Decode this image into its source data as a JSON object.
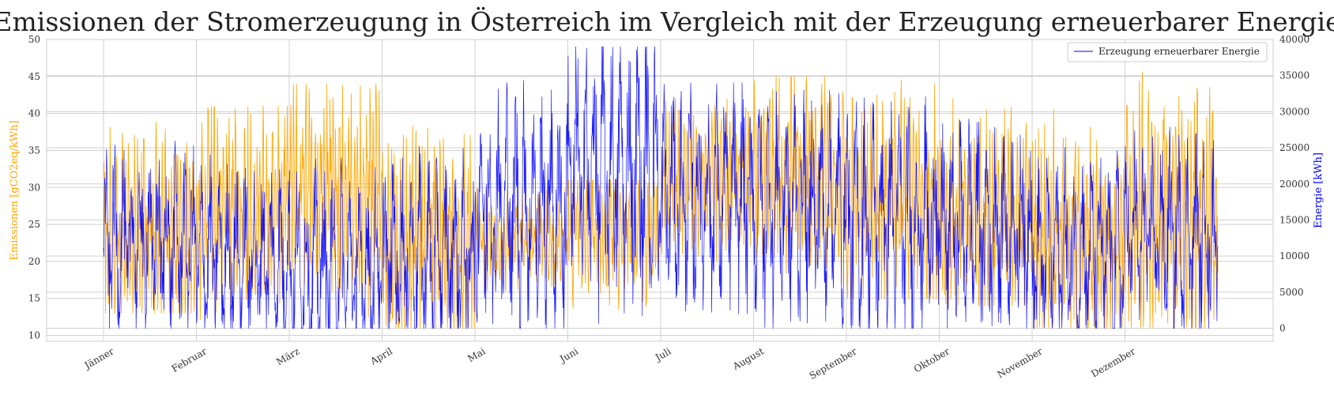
{
  "chart_data": {
    "type": "line",
    "title": "Emissionen der Stromerzeugung in Österreich im Vergleich mit der Erzeugung erneuerbarer Energie",
    "x_ticks": [
      "Jänner",
      "Februar",
      "März",
      "April",
      "Mai",
      "Juni",
      "Juli",
      "August",
      "September",
      "Oktober",
      "November",
      "Dezember"
    ],
    "left_axis": {
      "label": "Emissionen [gCO2eq/kWh]",
      "color": "#ffa500",
      "ylim": [
        9.2,
        50
      ],
      "ticks": [
        10,
        15,
        20,
        25,
        30,
        35,
        40,
        45,
        50
      ]
    },
    "right_axis": {
      "label": "Energie [kWh]",
      "color": "#0000ff",
      "ylim": [
        -1800,
        40000
      ],
      "ticks": [
        0,
        5000,
        10000,
        15000,
        20000,
        25000,
        30000,
        35000,
        40000
      ]
    },
    "legend": {
      "entries": [
        "Erzeugung erneuerbarer Energie"
      ],
      "position": "top-right"
    },
    "grid": true,
    "series": [
      {
        "axis": "left",
        "color": "#ffa500",
        "x_range_months": [
          0,
          12
        ],
        "monthly_mean": [
          24,
          27,
          30,
          22,
          23,
          24,
          31,
          32,
          28,
          26,
          23,
          26
        ],
        "monthly_max": [
          42,
          41,
          44,
          44,
          30,
          31,
          42,
          45,
          46,
          44,
          43,
          47
        ],
        "monthly_min": [
          13,
          11,
          12,
          11,
          16,
          11,
          20,
          17,
          15,
          14,
          11,
          11
        ]
      },
      {
        "name": "Erzeugung erneuerbarer Energie",
        "axis": "right",
        "color": "#0000ff",
        "x_range_months": [
          0,
          12
        ],
        "monthly_mean": [
          12000,
          10000,
          8000,
          10000,
          17000,
          22000,
          18000,
          17000,
          15000,
          14000,
          10000,
          13000
        ],
        "monthly_max": [
          26000,
          26000,
          30000,
          28000,
          36000,
          39000,
          34000,
          33000,
          33000,
          31000,
          28000,
          28000
        ],
        "monthly_min": [
          0,
          0,
          0,
          0,
          0,
          0,
          2000,
          0,
          0,
          0,
          0,
          0
        ]
      }
    ]
  }
}
